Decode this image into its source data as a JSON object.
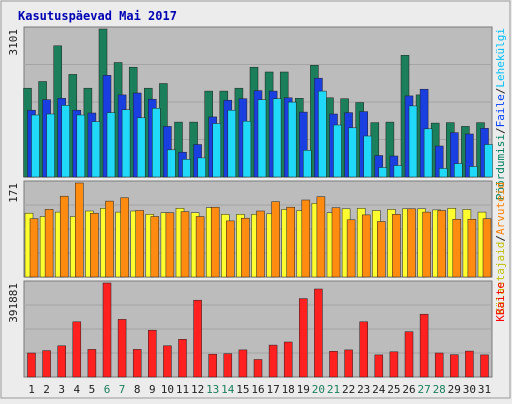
{
  "chart_data": {
    "type": "bar",
    "title": "Kasutuspäevad Mai 2017",
    "categories": [
      "1",
      "2",
      "3",
      "4",
      "5",
      "6",
      "7",
      "8",
      "9",
      "10",
      "11",
      "12",
      "13",
      "14",
      "15",
      "16",
      "17",
      "18",
      "19",
      "20",
      "21",
      "22",
      "23",
      "24",
      "25",
      "26",
      "27",
      "28",
      "29",
      "30",
      "31"
    ],
    "weekend_days": [
      "6",
      "7",
      "13",
      "14",
      "20",
      "21",
      "27",
      "28"
    ],
    "panels": [
      {
        "max_label": "3101",
        "ymax": 3101,
        "right_labels": [
          {
            "text": "Pöördumisi",
            "color": "#008060"
          },
          {
            "text": "Faile",
            "color": "#0040ff"
          },
          {
            "text": "Lehekülgi",
            "color": "#00c0ff"
          }
        ],
        "series": [
          {
            "name": "Pöördumisi",
            "color": "#1a7f5a",
            "values": [
              1860,
              2000,
              2750,
              2150,
              1860,
              3101,
              2400,
              2300,
              1860,
              1960,
              1150,
              1150,
              1800,
              1800,
              1860,
              2300,
              2200,
              2200,
              1650,
              2340,
              1660,
              1640,
              1560,
              1140,
              1150,
              2550,
              1720,
              1130,
              1140,
              1060,
              1140
            ]
          },
          {
            "name": "Faile",
            "color": "#1a3fe0",
            "values": [
              1400,
              1620,
              1650,
              1400,
              1340,
              2130,
              1720,
              1760,
              1630,
              1060,
              520,
              680,
              1260,
              1610,
              1640,
              1810,
              1800,
              1660,
              1360,
              2070,
              1320,
              1350,
              1370,
              450,
              440,
              1700,
              1840,
              650,
              930,
              900,
              1020
            ]
          },
          {
            "name": "Lehekülgi",
            "color": "#20d8f8",
            "values": [
              1300,
              1320,
              1500,
              1300,
              1160,
              1350,
              1410,
              1240,
              1440,
              570,
              370,
              400,
              1120,
              1400,
              1170,
              1620,
              1640,
              1570,
              560,
              1800,
              1090,
              1030,
              860,
              200,
              240,
              1490,
              1010,
              180,
              280,
              220,
              680
            ]
          }
        ]
      },
      {
        "max_label": "171",
        "ymax": 171,
        "right_labels": [
          {
            "text": "Külastajaid",
            "color": "#c0c000"
          },
          {
            "text": "Arvuteid",
            "color": "#ff8000"
          }
        ],
        "series": [
          {
            "name": "Külastajaid",
            "color": "#ffff30",
            "values": [
              116,
              110,
              118,
              110,
              120,
              125,
              118,
              120,
              114,
              117,
              125,
              117,
              126,
              114,
              114,
              114,
              115,
              123,
              121,
              134,
              117,
              124,
              125,
              121,
              123,
              124,
              124,
              122,
              125,
              123,
              118
            ]
          },
          {
            "name": "Arvuteid",
            "color": "#ff8c10",
            "values": [
              106,
              123,
              147,
              171,
              116,
              138,
              144,
              121,
              110,
              117,
              119,
              110,
              127,
              102,
              107,
              120,
              137,
              127,
              140,
              146,
              126,
              104,
              113,
              101,
              114,
              124,
              118,
              121,
              105,
              105,
              106
            ]
          }
        ]
      },
      {
        "max_label": "391881",
        "ymax": 391881,
        "right_labels": [
          {
            "text": "KBaite",
            "color": "#ff0000"
          }
        ],
        "series": [
          {
            "name": "KBaite",
            "color": "#ff2020",
            "values": [
              100000,
              110000,
              130000,
              230000,
              115000,
              391881,
              240000,
              115000,
              195000,
              130000,
              157000,
              320000,
              95000,
              97000,
              113000,
              73000,
              133000,
              146000,
              327000,
              367000,
              107000,
              113000,
              230000,
              92000,
              105000,
              189000,
              262000,
              100000,
              93000,
              108000,
              92000
            ]
          }
        ]
      }
    ]
  }
}
